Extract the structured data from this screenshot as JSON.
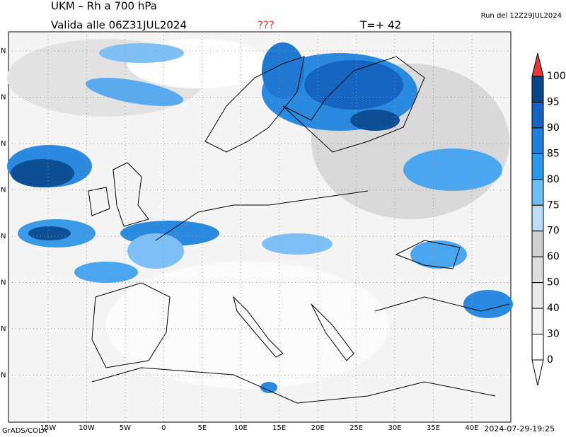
{
  "header": {
    "title": "UKM – Rh a 700 hPa",
    "valid": "Valida alle 06Z31JUL2024",
    "flag": "???",
    "step": "T=+ 42",
    "run": "Run del 12Z29JUL2024"
  },
  "map": {
    "lon_labels": [
      "15W",
      "10W",
      "5W",
      "0",
      "5E",
      "10E",
      "15E",
      "20E",
      "25E",
      "30E",
      "35E",
      "40E"
    ],
    "lat_labels": [
      "N",
      "N",
      "N",
      "N",
      "N",
      "N",
      "N",
      "N"
    ]
  },
  "colorbar": {
    "labels": [
      100,
      95,
      90,
      85,
      80,
      75,
      70,
      60,
      50,
      40,
      30,
      0
    ]
  },
  "footer": {
    "left": "GrADS/COLA",
    "right": "2024-07-29-19:25"
  }
}
